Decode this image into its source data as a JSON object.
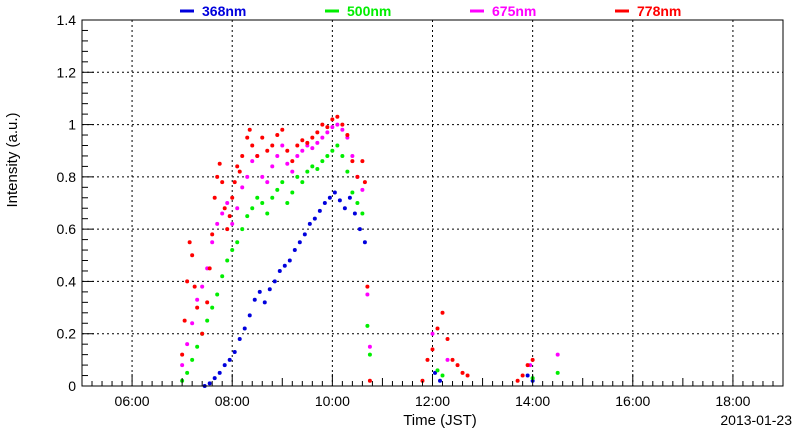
{
  "chart_data": {
    "type": "scatter",
    "title": "",
    "xlabel": "Time (JST)",
    "ylabel": "Intensity (a.u.)",
    "date_label": "2013-01-23",
    "x_ticks": [
      "06:00",
      "08:00",
      "10:00",
      "12:00",
      "14:00",
      "16:00",
      "18:00"
    ],
    "x_tick_hours": [
      6,
      8,
      10,
      12,
      14,
      16,
      18
    ],
    "xlim": [
      "05:00",
      "19:00"
    ],
    "xlim_hours": [
      5,
      19
    ],
    "y_ticks": [
      "0",
      "0.2",
      "0.4",
      "0.6",
      "0.8",
      "1",
      "1.2",
      "1.4"
    ],
    "y_tick_values": [
      0,
      0.2,
      0.4,
      0.6,
      0.8,
      1.0,
      1.2,
      1.4
    ],
    "ylim": [
      0,
      1.4
    ],
    "grid": true,
    "legend_position": "top",
    "series": [
      {
        "name": "368nm",
        "color": "#0000dd",
        "points": [
          [
            7.45,
            0.0
          ],
          [
            7.55,
            0.01
          ],
          [
            7.65,
            0.03
          ],
          [
            7.75,
            0.05
          ],
          [
            7.85,
            0.08
          ],
          [
            7.95,
            0.1
          ],
          [
            8.05,
            0.13
          ],
          [
            8.15,
            0.18
          ],
          [
            8.25,
            0.22
          ],
          [
            8.35,
            0.27
          ],
          [
            8.45,
            0.33
          ],
          [
            8.55,
            0.36
          ],
          [
            8.65,
            0.32
          ],
          [
            8.75,
            0.37
          ],
          [
            8.85,
            0.4
          ],
          [
            8.95,
            0.44
          ],
          [
            9.05,
            0.46
          ],
          [
            9.15,
            0.48
          ],
          [
            9.25,
            0.52
          ],
          [
            9.35,
            0.55
          ],
          [
            9.45,
            0.58
          ],
          [
            9.55,
            0.62
          ],
          [
            9.65,
            0.64
          ],
          [
            9.75,
            0.67
          ],
          [
            9.85,
            0.7
          ],
          [
            9.95,
            0.72
          ],
          [
            10.05,
            0.74
          ],
          [
            10.15,
            0.71
          ],
          [
            10.25,
            0.68
          ],
          [
            10.35,
            0.72
          ],
          [
            10.45,
            0.66
          ],
          [
            10.55,
            0.6
          ],
          [
            10.65,
            0.55
          ],
          [
            12.05,
            0.05
          ],
          [
            12.15,
            0.02
          ],
          [
            13.9,
            0.04
          ],
          [
            14.0,
            0.02
          ]
        ]
      },
      {
        "name": "500nm",
        "color": "#00ee00",
        "points": [
          [
            7.0,
            0.02
          ],
          [
            7.1,
            0.05
          ],
          [
            7.2,
            0.1
          ],
          [
            7.3,
            0.15
          ],
          [
            7.4,
            0.2
          ],
          [
            7.5,
            0.25
          ],
          [
            7.6,
            0.3
          ],
          [
            7.7,
            0.35
          ],
          [
            7.8,
            0.42
          ],
          [
            7.9,
            0.48
          ],
          [
            8.0,
            0.52
          ],
          [
            8.1,
            0.55
          ],
          [
            8.2,
            0.6
          ],
          [
            8.3,
            0.65
          ],
          [
            8.4,
            0.68
          ],
          [
            8.5,
            0.72
          ],
          [
            8.6,
            0.7
          ],
          [
            8.7,
            0.66
          ],
          [
            8.8,
            0.72
          ],
          [
            8.9,
            0.75
          ],
          [
            9.0,
            0.78
          ],
          [
            9.1,
            0.7
          ],
          [
            9.2,
            0.74
          ],
          [
            9.3,
            0.8
          ],
          [
            9.4,
            0.78
          ],
          [
            9.5,
            0.82
          ],
          [
            9.6,
            0.84
          ],
          [
            9.7,
            0.83
          ],
          [
            9.8,
            0.86
          ],
          [
            9.9,
            0.88
          ],
          [
            10.0,
            0.9
          ],
          [
            10.1,
            0.92
          ],
          [
            10.2,
            0.88
          ],
          [
            10.3,
            0.82
          ],
          [
            10.4,
            0.74
          ],
          [
            10.5,
            0.7
          ],
          [
            10.6,
            0.66
          ],
          [
            10.7,
            0.23
          ],
          [
            10.75,
            0.12
          ],
          [
            12.1,
            0.06
          ],
          [
            12.2,
            0.04
          ],
          [
            14.0,
            0.03
          ],
          [
            14.5,
            0.05
          ]
        ]
      },
      {
        "name": "675nm",
        "color": "#ff00ff",
        "points": [
          [
            7.0,
            0.08
          ],
          [
            7.1,
            0.16
          ],
          [
            7.2,
            0.24
          ],
          [
            7.3,
            0.33
          ],
          [
            7.4,
            0.38
          ],
          [
            7.5,
            0.45
          ],
          [
            7.6,
            0.55
          ],
          [
            7.7,
            0.62
          ],
          [
            7.8,
            0.66
          ],
          [
            7.9,
            0.7
          ],
          [
            8.0,
            0.62
          ],
          [
            8.1,
            0.68
          ],
          [
            8.2,
            0.76
          ],
          [
            8.3,
            0.8
          ],
          [
            8.4,
            0.86
          ],
          [
            8.5,
            0.88
          ],
          [
            8.6,
            0.8
          ],
          [
            8.7,
            0.78
          ],
          [
            8.8,
            0.84
          ],
          [
            8.9,
            0.88
          ],
          [
            9.0,
            0.92
          ],
          [
            9.1,
            0.85
          ],
          [
            9.2,
            0.82
          ],
          [
            9.3,
            0.88
          ],
          [
            9.4,
            0.9
          ],
          [
            9.5,
            0.92
          ],
          [
            9.6,
            0.91
          ],
          [
            9.7,
            0.93
          ],
          [
            9.8,
            0.95
          ],
          [
            9.9,
            0.97
          ],
          [
            10.0,
            0.99
          ],
          [
            10.1,
            1.0
          ],
          [
            10.2,
            0.98
          ],
          [
            10.3,
            0.95
          ],
          [
            10.4,
            0.88
          ],
          [
            10.5,
            0.8
          ],
          [
            10.6,
            0.75
          ],
          [
            10.7,
            0.35
          ],
          [
            10.75,
            0.15
          ],
          [
            12.0,
            0.2
          ],
          [
            12.3,
            0.1
          ],
          [
            13.95,
            0.08
          ],
          [
            14.5,
            0.12
          ]
        ]
      },
      {
        "name": "778nm",
        "color": "#ff0000",
        "points": [
          [
            7.0,
            0.12
          ],
          [
            7.05,
            0.25
          ],
          [
            7.1,
            0.4
          ],
          [
            7.15,
            0.55
          ],
          [
            7.2,
            0.5
          ],
          [
            7.25,
            0.38
          ],
          [
            7.3,
            0.3
          ],
          [
            7.4,
            0.2
          ],
          [
            7.5,
            0.32
          ],
          [
            7.55,
            0.45
          ],
          [
            7.6,
            0.58
          ],
          [
            7.65,
            0.72
          ],
          [
            7.7,
            0.8
          ],
          [
            7.75,
            0.85
          ],
          [
            7.8,
            0.78
          ],
          [
            7.85,
            0.68
          ],
          [
            7.9,
            0.6
          ],
          [
            7.95,
            0.65
          ],
          [
            8.0,
            0.72
          ],
          [
            8.05,
            0.78
          ],
          [
            8.1,
            0.84
          ],
          [
            8.15,
            0.82
          ],
          [
            8.2,
            0.88
          ],
          [
            8.3,
            0.95
          ],
          [
            8.35,
            0.98
          ],
          [
            8.4,
            0.92
          ],
          [
            8.5,
            0.88
          ],
          [
            8.6,
            0.95
          ],
          [
            8.7,
            0.9
          ],
          [
            8.8,
            0.92
          ],
          [
            8.9,
            0.96
          ],
          [
            9.0,
            0.98
          ],
          [
            9.1,
            0.9
          ],
          [
            9.2,
            0.86
          ],
          [
            9.3,
            0.92
          ],
          [
            9.4,
            0.94
          ],
          [
            9.5,
            0.93
          ],
          [
            9.6,
            0.95
          ],
          [
            9.7,
            0.97
          ],
          [
            9.8,
            1.0
          ],
          [
            9.9,
            0.99
          ],
          [
            10.0,
            1.02
          ],
          [
            10.1,
            1.03
          ],
          [
            10.2,
            1.0
          ],
          [
            10.3,
            0.96
          ],
          [
            10.4,
            0.86
          ],
          [
            10.5,
            0.8
          ],
          [
            10.6,
            0.86
          ],
          [
            10.65,
            0.78
          ],
          [
            10.7,
            0.38
          ],
          [
            10.75,
            0.02
          ],
          [
            11.8,
            0.02
          ],
          [
            11.9,
            0.1
          ],
          [
            12.0,
            0.14
          ],
          [
            12.1,
            0.22
          ],
          [
            12.2,
            0.28
          ],
          [
            12.3,
            0.18
          ],
          [
            12.4,
            0.1
          ],
          [
            12.5,
            0.08
          ],
          [
            12.6,
            0.05
          ],
          [
            12.7,
            0.04
          ],
          [
            13.7,
            0.02
          ],
          [
            13.8,
            0.04
          ],
          [
            13.9,
            0.08
          ],
          [
            14.0,
            0.1
          ]
        ]
      }
    ]
  }
}
